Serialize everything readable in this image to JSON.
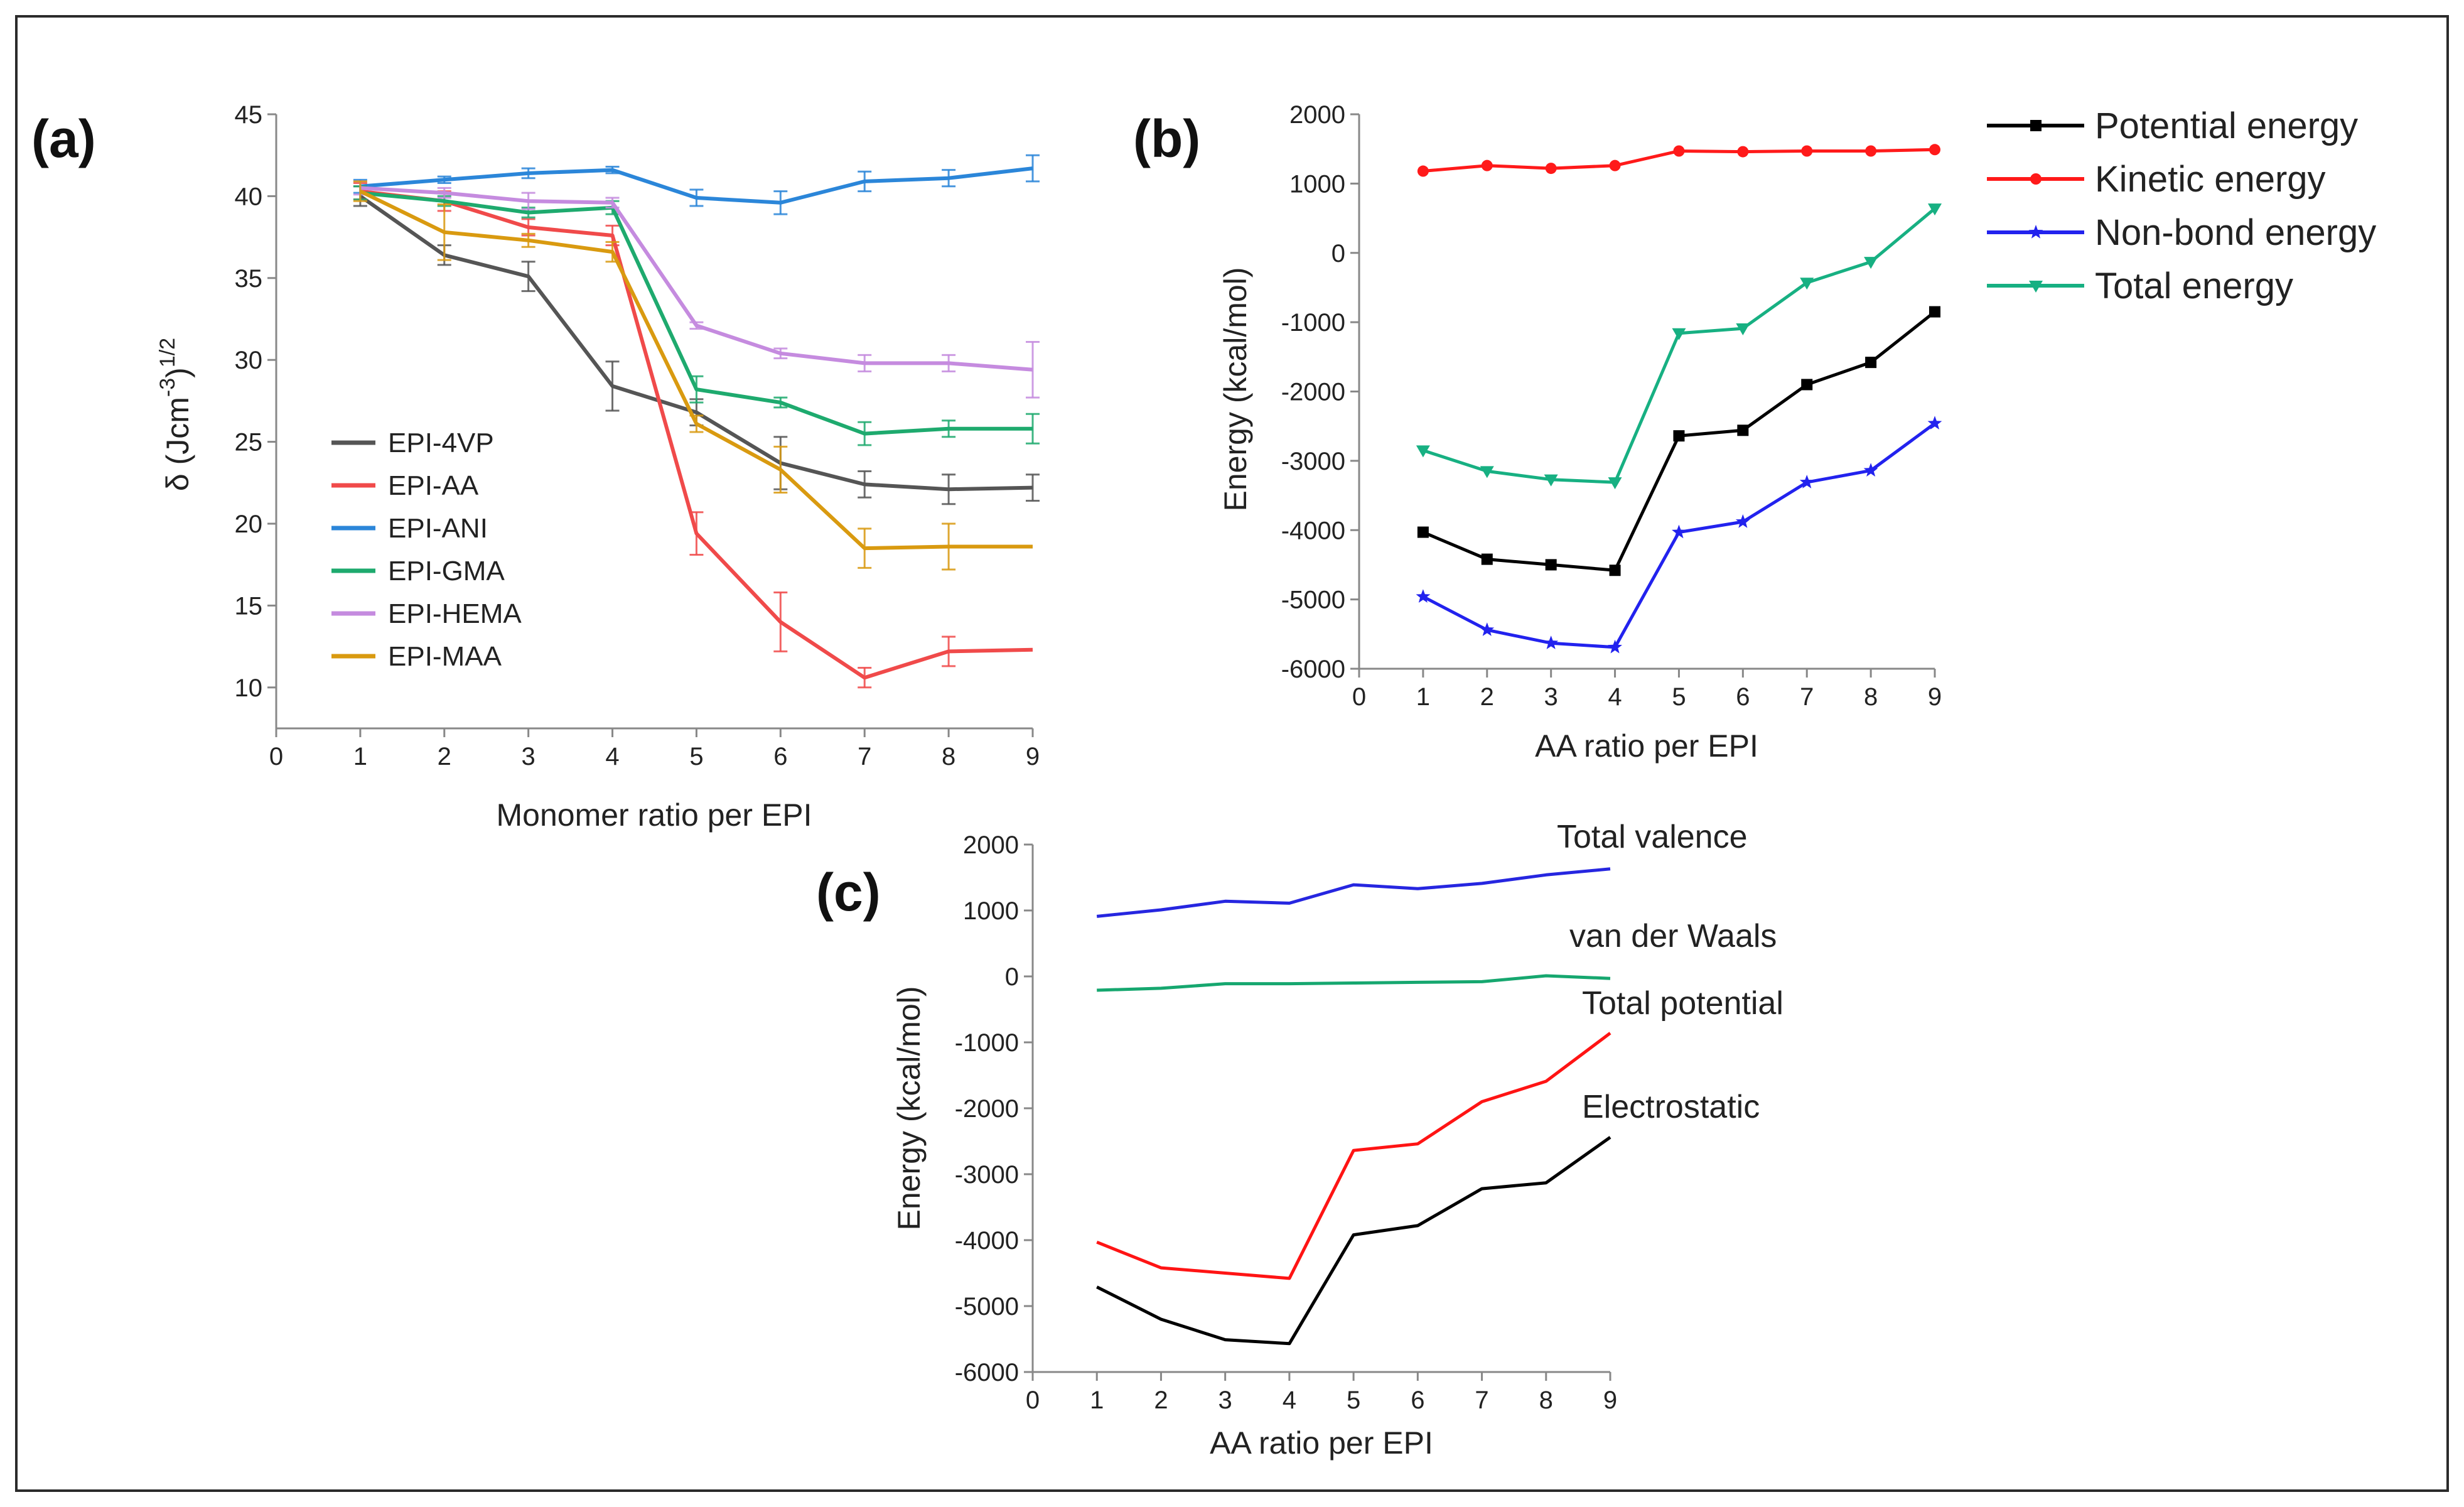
{
  "figure": {
    "frame_color": "#2b2b2b"
  },
  "chart_data": [
    {
      "panel_label": "(a)",
      "type": "line",
      "xlabel": "Monomer ratio per EPI",
      "ylabel": "δ (Jcm",
      "ylabel_sup1": "-3",
      "ylabel_mid": ")",
      "ylabel_sup2": "1/2",
      "xlim": [
        0,
        9
      ],
      "ylim": [
        7.5,
        45
      ],
      "xticks": [
        0,
        1,
        2,
        3,
        4,
        5,
        6,
        7,
        8,
        9
      ],
      "yticks": [
        10,
        15,
        20,
        25,
        30,
        35,
        40,
        45
      ],
      "x": [
        1,
        2,
        3,
        4,
        5,
        6,
        7,
        8,
        9
      ],
      "legend_position": "center-left",
      "series": [
        {
          "name": "EPI-4VP",
          "color": "#555555",
          "values": [
            40.0,
            36.4,
            35.1,
            28.4,
            26.8,
            23.7,
            22.4,
            22.1,
            22.2
          ],
          "errors": [
            0.6,
            0.6,
            0.9,
            1.5,
            0.8,
            1.6,
            0.8,
            0.9,
            0.8
          ]
        },
        {
          "name": "EPI-AA",
          "color": "#f04a4a",
          "values": [
            40.3,
            39.7,
            38.1,
            37.6,
            19.4,
            14.0,
            10.6,
            12.2,
            12.3
          ],
          "errors": [
            0.5,
            0.6,
            0.5,
            0.6,
            1.3,
            1.8,
            0.6,
            0.9,
            0.0
          ]
        },
        {
          "name": "EPI-ANI",
          "color": "#2b86d9",
          "values": [
            40.6,
            41.0,
            41.4,
            41.6,
            39.9,
            39.6,
            40.9,
            41.1,
            41.7
          ],
          "errors": [
            0.4,
            0.2,
            0.3,
            0.2,
            0.5,
            0.7,
            0.6,
            0.5,
            0.8
          ]
        },
        {
          "name": "EPI-GMA",
          "color": "#1eaa6e",
          "values": [
            40.2,
            39.7,
            39.0,
            39.3,
            28.2,
            27.4,
            25.5,
            25.8,
            25.8
          ],
          "errors": [
            0.4,
            0.3,
            0.3,
            0.4,
            0.8,
            0.3,
            0.7,
            0.5,
            0.9
          ]
        },
        {
          "name": "EPI-HEMA",
          "color": "#c58bdf",
          "values": [
            40.5,
            40.2,
            39.7,
            39.6,
            32.1,
            30.4,
            29.8,
            29.8,
            29.4
          ],
          "errors": [
            0.4,
            0.3,
            0.5,
            0.3,
            0.2,
            0.3,
            0.5,
            0.5,
            1.7
          ]
        },
        {
          "name": "EPI-MAA",
          "color": "#d99a10",
          "values": [
            40.3,
            37.8,
            37.3,
            36.6,
            26.1,
            23.3,
            18.5,
            18.6,
            18.6
          ],
          "errors": [
            0.6,
            1.7,
            0.4,
            0.6,
            0.5,
            1.4,
            1.2,
            1.4,
            0.0
          ]
        }
      ]
    },
    {
      "panel_label": "(b)",
      "type": "line",
      "xlabel": "AA ratio per EPI",
      "ylabel": "Energy (kcal/mol)",
      "xlim": [
        0,
        9
      ],
      "ylim": [
        -6000,
        2000
      ],
      "xticks": [
        0,
        1,
        2,
        3,
        4,
        5,
        6,
        7,
        8,
        9
      ],
      "yticks": [
        -6000,
        -5000,
        -4000,
        -3000,
        -2000,
        -1000,
        0,
        1000,
        2000
      ],
      "x": [
        1,
        2,
        3,
        4,
        5,
        6,
        7,
        8,
        9
      ],
      "legend_position": "outside-right",
      "series": [
        {
          "name": "Potential energy",
          "color": "#000000",
          "marker": "square",
          "values": [
            -4030,
            -4420,
            -4500,
            -4580,
            -2640,
            -2560,
            -1900,
            -1580,
            -850
          ]
        },
        {
          "name": "Kinetic energy",
          "color": "#ff1a1a",
          "marker": "circle",
          "values": [
            1180,
            1260,
            1220,
            1260,
            1470,
            1460,
            1470,
            1470,
            1490
          ]
        },
        {
          "name": "Non-bond energy",
          "color": "#2222ee",
          "marker": "star",
          "values": [
            -4960,
            -5440,
            -5630,
            -5690,
            -4030,
            -3880,
            -3310,
            -3140,
            -2460
          ]
        },
        {
          "name": "Total energy",
          "color": "#17b082",
          "marker": "triangle-down",
          "values": [
            -2850,
            -3150,
            -3270,
            -3310,
            -1160,
            -1090,
            -430,
            -130,
            640
          ]
        }
      ]
    },
    {
      "panel_label": "(c)",
      "type": "line",
      "xlabel": "AA ratio per EPI",
      "ylabel": "Energy (kcal/mol)",
      "xlim": [
        0,
        9
      ],
      "ylim": [
        -6000,
        2000
      ],
      "xticks": [
        0,
        1,
        2,
        3,
        4,
        5,
        6,
        7,
        8,
        9
      ],
      "yticks": [
        -6000,
        -5000,
        -4000,
        -3000,
        -2000,
        -1000,
        0,
        1000,
        2000
      ],
      "x": [
        1,
        2,
        3,
        4,
        5,
        6,
        7,
        8,
        9
      ],
      "series": [
        {
          "name": "Total valence",
          "color": "#2626e0",
          "values": [
            910,
            1010,
            1140,
            1110,
            1390,
            1330,
            1410,
            1540,
            1630
          ]
        },
        {
          "name": "van der Waals",
          "color": "#16a76f",
          "values": [
            -210,
            -180,
            -110,
            -110,
            -100,
            -90,
            -80,
            10,
            -30
          ]
        },
        {
          "name": "Total potential",
          "color": "#ff1414",
          "values": [
            -4030,
            -4420,
            -4500,
            -4580,
            -2640,
            -2540,
            -1900,
            -1590,
            -860
          ]
        },
        {
          "name": "Electrostatic",
          "color": "#000000",
          "values": [
            -4710,
            -5200,
            -5510,
            -5570,
            -3920,
            -3780,
            -3220,
            -3130,
            -2440
          ]
        }
      ]
    }
  ]
}
